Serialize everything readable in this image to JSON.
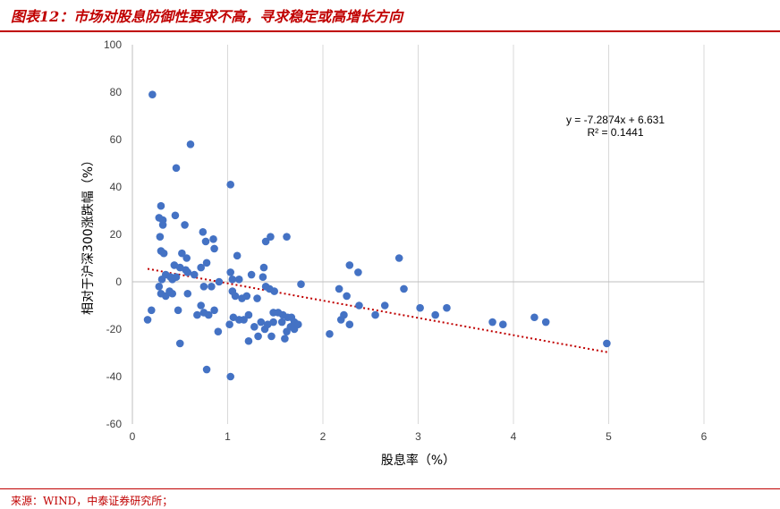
{
  "header": {
    "title": "图表12：市场对股息防御性要求不高，寻求稳定或高增长方向"
  },
  "footer": {
    "source": "来源：WIND，中泰证券研究所；"
  },
  "chart_data": {
    "type": "scatter",
    "xlabel": "股息率（%）",
    "ylabel": "相对于沪深300涨跌幅（%）",
    "xlim": [
      0,
      6
    ],
    "ylim": [
      -60,
      100
    ],
    "xticks": [
      0,
      1,
      2,
      3,
      4,
      5,
      6
    ],
    "yticks": [
      -60,
      -40,
      -20,
      0,
      20,
      40,
      60,
      80,
      100
    ],
    "grid": "vertical",
    "colors": {
      "points": "#4472c4",
      "trendline": "#c00000"
    },
    "trendline": {
      "type": "linear",
      "slope": -7.2874,
      "intercept": 6.631,
      "x_range": [
        0.16,
        5.0
      ],
      "equation": "y = -7.2874x  + 6.631",
      "r2_label": "R² = 0.1441"
    },
    "points": [
      [
        0.21,
        79
      ],
      [
        0.61,
        58
      ],
      [
        0.46,
        48
      ],
      [
        1.03,
        41
      ],
      [
        0.3,
        32
      ],
      [
        0.28,
        27
      ],
      [
        0.32,
        26
      ],
      [
        0.32,
        24
      ],
      [
        0.45,
        28
      ],
      [
        0.55,
        24
      ],
      [
        0.74,
        21
      ],
      [
        0.85,
        18
      ],
      [
        0.77,
        17
      ],
      [
        1.4,
        17
      ],
      [
        1.45,
        19
      ],
      [
        1.62,
        19
      ],
      [
        0.29,
        19
      ],
      [
        0.86,
        14
      ],
      [
        0.3,
        13
      ],
      [
        0.33,
        12
      ],
      [
        0.52,
        12
      ],
      [
        0.57,
        10
      ],
      [
        1.1,
        11
      ],
      [
        2.8,
        10
      ],
      [
        2.28,
        7
      ],
      [
        2.37,
        4
      ],
      [
        1.03,
        4
      ],
      [
        1.25,
        3
      ],
      [
        1.37,
        2
      ],
      [
        0.44,
        7
      ],
      [
        0.5,
        6
      ],
      [
        0.56,
        5
      ],
      [
        0.72,
        6
      ],
      [
        0.78,
        8
      ],
      [
        1.38,
        6
      ],
      [
        0.35,
        3
      ],
      [
        0.4,
        2
      ],
      [
        0.42,
        1
      ],
      [
        0.46,
        2
      ],
      [
        0.58,
        4
      ],
      [
        0.65,
        3
      ],
      [
        0.31,
        1
      ],
      [
        1.12,
        1
      ],
      [
        1.05,
        1
      ],
      [
        0.91,
        0
      ],
      [
        1.77,
        -1
      ],
      [
        0.28,
        -2
      ],
      [
        0.75,
        -2
      ],
      [
        0.83,
        -2
      ],
      [
        1.4,
        -2
      ],
      [
        1.44,
        -3
      ],
      [
        1.49,
        -4
      ],
      [
        2.85,
        -3
      ],
      [
        2.17,
        -3
      ],
      [
        2.25,
        -6
      ],
      [
        0.3,
        -5
      ],
      [
        0.35,
        -6
      ],
      [
        0.42,
        -5
      ],
      [
        0.39,
        -4
      ],
      [
        0.58,
        -5
      ],
      [
        1.05,
        -4
      ],
      [
        1.08,
        -6
      ],
      [
        1.15,
        -7
      ],
      [
        1.2,
        -6
      ],
      [
        1.31,
        -7
      ],
      [
        0.2,
        -12
      ],
      [
        0.48,
        -12
      ],
      [
        0.72,
        -10
      ],
      [
        0.86,
        -12
      ],
      [
        0.75,
        -13
      ],
      [
        0.8,
        -14
      ],
      [
        0.68,
        -14
      ],
      [
        0.16,
        -16
      ],
      [
        1.02,
        -18
      ],
      [
        1.12,
        -16
      ],
      [
        1.17,
        -16
      ],
      [
        1.22,
        -14
      ],
      [
        1.06,
        -15
      ],
      [
        1.28,
        -19
      ],
      [
        1.35,
        -17
      ],
      [
        1.42,
        -18
      ],
      [
        1.48,
        -17
      ],
      [
        1.57,
        -17
      ],
      [
        1.63,
        -15
      ],
      [
        1.67,
        -15
      ],
      [
        1.53,
        -13
      ],
      [
        1.7,
        -17
      ],
      [
        1.74,
        -18
      ],
      [
        1.66,
        -19
      ],
      [
        1.62,
        -21
      ],
      [
        1.7,
        -20
      ],
      [
        1.6,
        -24
      ],
      [
        1.46,
        -23
      ],
      [
        1.32,
        -23
      ],
      [
        1.22,
        -25
      ],
      [
        1.39,
        -20
      ],
      [
        1.48,
        -13
      ],
      [
        1.58,
        -14
      ],
      [
        0.9,
        -21
      ],
      [
        0.5,
        -26
      ],
      [
        0.78,
        -37
      ],
      [
        1.03,
        -40
      ],
      [
        2.07,
        -22
      ],
      [
        2.19,
        -16
      ],
      [
        2.22,
        -14
      ],
      [
        2.28,
        -18
      ],
      [
        2.38,
        -10
      ],
      [
        2.55,
        -14
      ],
      [
        2.65,
        -10
      ],
      [
        3.02,
        -11
      ],
      [
        3.18,
        -14
      ],
      [
        3.3,
        -11
      ],
      [
        3.78,
        -17
      ],
      [
        3.89,
        -18
      ],
      [
        4.22,
        -15
      ],
      [
        4.34,
        -17
      ],
      [
        4.98,
        -26
      ]
    ]
  }
}
